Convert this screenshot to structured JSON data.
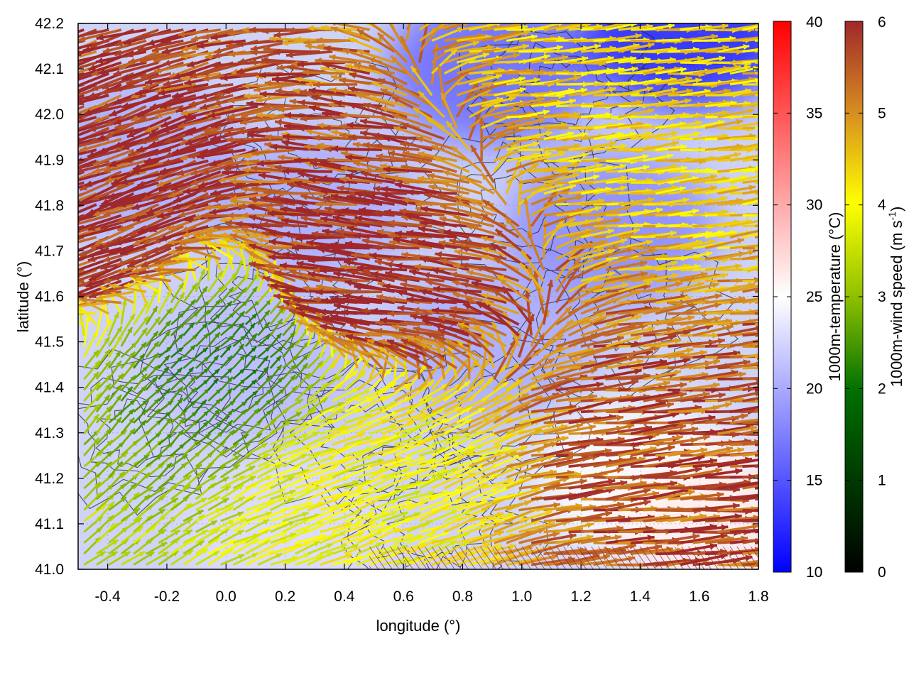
{
  "chart_data": {
    "type": "vector-field",
    "xlabel": "longitude (°)",
    "ylabel": "latitude (°)",
    "xlim": [
      -0.5,
      1.8
    ],
    "ylim": [
      41.0,
      42.2
    ],
    "x_ticks": [
      "-0.4",
      "-0.2",
      "0.0",
      "0.2",
      "0.4",
      "0.6",
      "0.8",
      "1.0",
      "1.2",
      "1.4",
      "1.6",
      "1.8"
    ],
    "x_tick_values": [
      -0.4,
      -0.2,
      0.0,
      0.2,
      0.4,
      0.6,
      0.8,
      1.0,
      1.2,
      1.4,
      1.6,
      1.8
    ],
    "y_ticks": [
      "41.0",
      "41.1",
      "41.2",
      "41.3",
      "41.4",
      "41.5",
      "41.6",
      "41.7",
      "41.8",
      "41.9",
      "42.0",
      "42.1",
      "42.2"
    ],
    "y_tick_values": [
      41.0,
      41.1,
      41.2,
      41.3,
      41.4,
      41.5,
      41.6,
      41.7,
      41.8,
      41.9,
      42.0,
      42.1,
      42.2
    ],
    "grid": true,
    "temperature_colorbar": {
      "label": "1000m-temperature (°C)",
      "range": [
        10,
        40
      ],
      "ticks": [
        "10",
        "15",
        "20",
        "25",
        "30",
        "35",
        "40"
      ],
      "tick_values": [
        10,
        15,
        20,
        25,
        30,
        35,
        40
      ],
      "colors": [
        "#0000ff",
        "#ffffff",
        "#ff0000"
      ]
    },
    "wind_colorbar": {
      "label_main": "1000m-wind speed (m s",
      "label_sup": "-1",
      "label_end": ")",
      "range": [
        0,
        6
      ],
      "ticks": [
        "0",
        "1",
        "2",
        "3",
        "4",
        "5",
        "6"
      ],
      "tick_values": [
        0,
        1,
        2,
        3,
        4,
        5,
        6
      ],
      "colors": [
        "#000000",
        "#007000",
        "#8fc000",
        "#ffff00",
        "#d89020",
        "#a0282a"
      ]
    },
    "temperature_field": [
      {
        "x": -0.3,
        "y": 41.9,
        "t": 20
      },
      {
        "x": 0.3,
        "y": 41.8,
        "t": 20
      },
      {
        "x": 0.9,
        "y": 42.1,
        "t": 16
      },
      {
        "x": 1.55,
        "y": 42.18,
        "t": 12
      },
      {
        "x": 1.3,
        "y": 41.75,
        "t": 18
      },
      {
        "x": 0.1,
        "y": 41.45,
        "t": 21
      },
      {
        "x": 0.9,
        "y": 41.5,
        "t": 20
      },
      {
        "x": 1.4,
        "y": 41.2,
        "t": 25
      },
      {
        "x": 0.2,
        "y": 41.1,
        "t": 23
      },
      {
        "x": 1.7,
        "y": 41.1,
        "t": 26
      }
    ],
    "wind_field": {
      "description_regions": [
        {
          "region": "northwest",
          "x": -0.3,
          "y": 41.8,
          "dir_deg": 200,
          "speed": 6
        },
        {
          "region": "north-center",
          "x": 0.5,
          "y": 41.65,
          "dir_deg": 175,
          "speed": 6
        },
        {
          "region": "northeast",
          "x": 1.4,
          "y": 42.0,
          "dir_deg": 5,
          "speed": 4
        },
        {
          "region": "west-center",
          "x": 0.0,
          "y": 41.45,
          "dir_deg": 45,
          "speed": 1.5
        },
        {
          "region": "south-center",
          "x": 0.4,
          "y": 41.2,
          "dir_deg": 20,
          "speed": 3.5
        },
        {
          "region": "southeast",
          "x": 1.5,
          "y": 41.2,
          "dir_deg": 5,
          "speed": 5.5
        }
      ]
    }
  }
}
